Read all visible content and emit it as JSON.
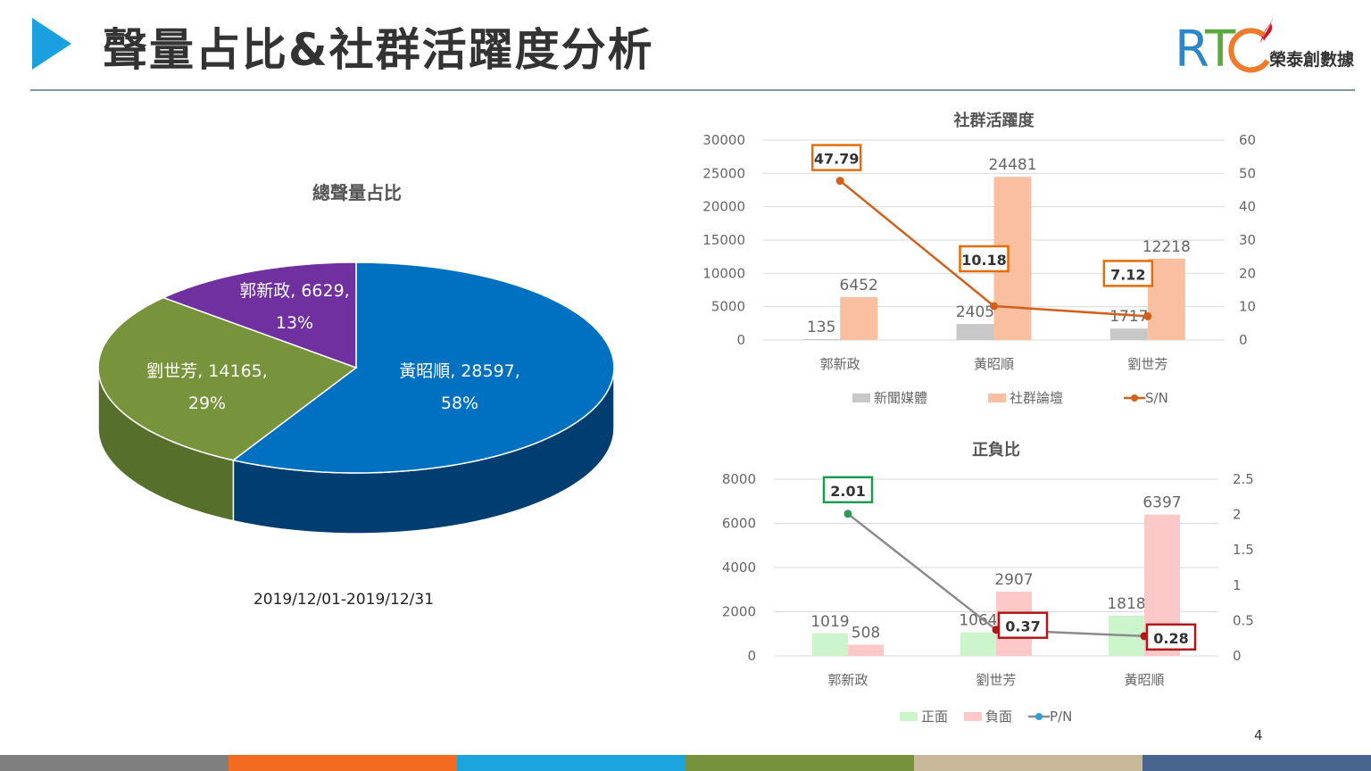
{
  "header": {
    "title": "聲量占比&社群活躍度分析",
    "logo_text": "RTC 榮泰創數據",
    "logo_subtitle": "榮泰創數據"
  },
  "pie": {
    "title": "總聲量占比",
    "date_range": "2019/12/01-2019/12/31",
    "slices": [
      {
        "name": "黃昭順",
        "value": 28597,
        "percent": "58%",
        "label": "黃昭順, 28597,",
        "color": "#0070c0",
        "side": "#003d70"
      },
      {
        "name": "劉世芳",
        "value": 14165,
        "percent": "29%",
        "label": "劉世芳, 14165,",
        "color": "#77933c",
        "side": "#56702c"
      },
      {
        "name": "郭新政",
        "value": 6629,
        "percent": "13%",
        "label": "郭新政, 6629,",
        "color": "#7030a0",
        "side": "#4f2070"
      }
    ]
  },
  "chart_data": [
    {
      "type": "bar+line",
      "title": "社群活躍度",
      "categories": [
        "郭新政",
        "黃昭順",
        "劉世芳"
      ],
      "series": [
        {
          "name": "新聞媒體",
          "type": "bar",
          "axis": "left",
          "color": "#c8c8c8",
          "values": [
            135,
            2405,
            1717
          ]
        },
        {
          "name": "社群論壇",
          "type": "bar",
          "axis": "left",
          "color": "#f8bfa0",
          "values": [
            6452,
            24481,
            12218
          ]
        },
        {
          "name": "S/N",
          "type": "line",
          "axis": "right",
          "color": "#d2601a",
          "values": [
            47.79,
            10.18,
            7.12
          ],
          "labels": [
            "47.79",
            "10.18",
            "7.12"
          ],
          "box_colors": [
            "#e46c0a",
            "#e46c0a",
            "#e46c0a"
          ],
          "point_colors": [
            "#d2601a",
            "#d2601a",
            "#d2601a"
          ]
        }
      ],
      "left_axis": {
        "ylim": [
          0,
          30000
        ],
        "ticks": [
          "0",
          "5000",
          "10000",
          "15000",
          "20000",
          "25000",
          "30000"
        ]
      },
      "right_axis": {
        "ylim": [
          0,
          60
        ],
        "ticks": [
          "0",
          "10",
          "20",
          "30",
          "40",
          "50",
          "60"
        ]
      },
      "grid": true,
      "legend": "bottom"
    },
    {
      "type": "bar+line",
      "title": "正負比",
      "categories": [
        "郭新政",
        "劉世芳",
        "黃昭順"
      ],
      "series": [
        {
          "name": "正面",
          "type": "bar",
          "axis": "left",
          "color": "#ccf5cc",
          "values": [
            1019,
            1064,
            1818
          ]
        },
        {
          "name": "負面",
          "type": "bar",
          "axis": "left",
          "color": "#fcc8c8",
          "values": [
            508,
            2907,
            6397
          ]
        },
        {
          "name": "P/N",
          "type": "line",
          "axis": "right",
          "color": "#8c8c8c",
          "legend_marker": "#2e9fd8",
          "values": [
            2.01,
            0.37,
            0.28
          ],
          "labels": [
            "2.01",
            "0.37",
            "0.28"
          ],
          "box_colors": [
            "#1e9a50",
            "#b01818",
            "#b01818"
          ],
          "point_colors": [
            "#2e9a5a",
            "#b01818",
            "#b01818"
          ]
        }
      ],
      "left_axis": {
        "ylim": [
          0,
          8000
        ],
        "ticks": [
          "0",
          "2000",
          "4000",
          "6000",
          "8000"
        ]
      },
      "right_axis": {
        "ylim": [
          0,
          2.5
        ],
        "ticks": [
          "0",
          "0.5",
          "1",
          "1.5",
          "2",
          "2.5"
        ]
      },
      "grid": true,
      "legend": "bottom"
    }
  ],
  "footer": {
    "page_number": "4",
    "colors": [
      "#7f7f7f",
      "#f26b21",
      "#1ba4dd",
      "#76923b",
      "#c9b99b",
      "#48658f"
    ]
  }
}
